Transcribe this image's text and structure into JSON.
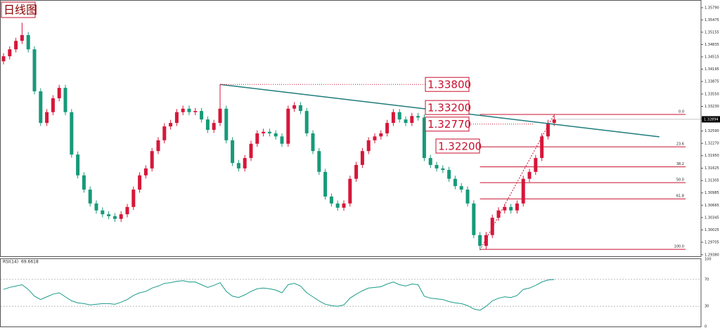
{
  "chart_data": [
    {
      "type": "candlestick",
      "title": "日线图",
      "up_color": "#d6173a",
      "down_color": "#179a7a",
      "open": [
        1.344,
        1.3453,
        1.3471,
        1.3493,
        1.3508,
        1.3471,
        1.3362,
        1.328,
        1.3308,
        1.3344,
        1.3371,
        1.3308,
        1.3198,
        1.3144,
        1.3107,
        1.3071,
        1.3053,
        1.3043,
        1.3038,
        1.3031,
        1.3043,
        1.3062,
        1.3107,
        1.3144,
        1.3162,
        1.3207,
        1.3235,
        1.3271,
        1.328,
        1.3308,
        1.3317,
        1.3308,
        1.3311,
        1.3289,
        1.3262,
        1.328,
        1.3317,
        1.3235,
        1.3176,
        1.3162,
        1.3189,
        1.3226,
        1.3253,
        1.3257,
        1.3253,
        1.3245,
        1.3226,
        1.3317,
        1.3326,
        1.3311,
        1.3253,
        1.3207,
        1.3153,
        1.3089,
        1.3071,
        1.306,
        1.3071,
        1.3135,
        1.3171,
        1.3207,
        1.3235,
        1.3245,
        1.3253,
        1.328,
        1.3308,
        1.3289,
        1.328,
        1.3298,
        1.3294,
        1.3189,
        1.3171,
        1.3162,
        1.3158,
        1.3135,
        1.3116,
        1.3107,
        1.3071,
        1.2989,
        1.2961,
        1.2989,
        1.3034,
        1.3053,
        1.3062,
        1.3053,
        1.3071,
        1.3135,
        1.3153,
        1.3189,
        1.3245,
        1.328
      ],
      "high": [
        1.3461,
        1.3479,
        1.3501,
        1.354,
        1.3516,
        1.3479,
        1.337,
        1.3316,
        1.3352,
        1.3379,
        1.3379,
        1.3316,
        1.3206,
        1.3152,
        1.3115,
        1.3079,
        1.3061,
        1.3051,
        1.3046,
        1.3051,
        1.307,
        1.3115,
        1.3152,
        1.317,
        1.3215,
        1.3243,
        1.3279,
        1.3288,
        1.3316,
        1.3325,
        1.3325,
        1.3319,
        1.3319,
        1.3297,
        1.3288,
        1.338,
        1.3325,
        1.3243,
        1.3184,
        1.3197,
        1.3234,
        1.3261,
        1.3265,
        1.3265,
        1.3261,
        1.3253,
        1.3325,
        1.3334,
        1.3334,
        1.3319,
        1.3261,
        1.3215,
        1.3161,
        1.3097,
        1.3079,
        1.3079,
        1.3143,
        1.3179,
        1.3215,
        1.3243,
        1.3253,
        1.3261,
        1.3288,
        1.3316,
        1.3316,
        1.3297,
        1.3306,
        1.3306,
        1.3302,
        1.3197,
        1.3179,
        1.317,
        1.3166,
        1.3143,
        1.3124,
        1.3115,
        1.3079,
        1.2997,
        1.2997,
        1.3042,
        1.3061,
        1.307,
        1.307,
        1.3079,
        1.3143,
        1.3161,
        1.3197,
        1.3253,
        1.3288,
        1.3302
      ],
      "low": [
        1.3432,
        1.3445,
        1.3463,
        1.3485,
        1.3463,
        1.3354,
        1.3272,
        1.3272,
        1.33,
        1.3336,
        1.33,
        1.319,
        1.3136,
        1.3099,
        1.3063,
        1.3045,
        1.3035,
        1.303,
        1.3023,
        1.3023,
        1.3035,
        1.3054,
        1.3099,
        1.3136,
        1.3154,
        1.3199,
        1.3227,
        1.3263,
        1.3272,
        1.33,
        1.33,
        1.33,
        1.3281,
        1.3254,
        1.3254,
        1.3272,
        1.3227,
        1.3168,
        1.3154,
        1.3154,
        1.3181,
        1.3218,
        1.3245,
        1.3245,
        1.3237,
        1.3218,
        1.3218,
        1.3309,
        1.3303,
        1.3245,
        1.3199,
        1.3145,
        1.3081,
        1.3063,
        1.3052,
        1.3052,
        1.3063,
        1.3127,
        1.3163,
        1.3199,
        1.3227,
        1.3237,
        1.3245,
        1.3272,
        1.3281,
        1.3272,
        1.3272,
        1.3286,
        1.3181,
        1.3163,
        1.3154,
        1.315,
        1.3127,
        1.3108,
        1.3099,
        1.3063,
        1.2981,
        1.295,
        1.2953,
        1.2981,
        1.3026,
        1.3045,
        1.3045,
        1.3045,
        1.3063,
        1.3127,
        1.3145,
        1.3181,
        1.3237,
        1.3272
      ],
      "close": [
        1.3453,
        1.3471,
        1.3493,
        1.3508,
        1.3471,
        1.3362,
        1.328,
        1.3308,
        1.3344,
        1.3371,
        1.3308,
        1.3198,
        1.3144,
        1.3107,
        1.3071,
        1.3053,
        1.3043,
        1.3038,
        1.3031,
        1.3043,
        1.3062,
        1.3107,
        1.3144,
        1.3162,
        1.3207,
        1.3235,
        1.3271,
        1.328,
        1.3308,
        1.3317,
        1.3308,
        1.3311,
        1.3289,
        1.3262,
        1.328,
        1.3317,
        1.3235,
        1.3176,
        1.3162,
        1.3189,
        1.3226,
        1.3253,
        1.3257,
        1.3253,
        1.3245,
        1.3226,
        1.3317,
        1.3326,
        1.3311,
        1.3253,
        1.3207,
        1.3153,
        1.3089,
        1.3071,
        1.306,
        1.3071,
        1.3135,
        1.3171,
        1.3207,
        1.3235,
        1.3245,
        1.3253,
        1.328,
        1.3308,
        1.3289,
        1.328,
        1.3298,
        1.3294,
        1.3189,
        1.3171,
        1.3162,
        1.3158,
        1.3135,
        1.3116,
        1.3107,
        1.3071,
        1.2989,
        1.2961,
        1.2989,
        1.3034,
        1.3053,
        1.3062,
        1.3053,
        1.3071,
        1.3135,
        1.3153,
        1.3189,
        1.3245,
        1.328,
        1.3289
      ],
      "ylim": [
        1.2934,
        1.3599
      ],
      "yticks": [
        {
          "value": 1.3579,
          "label": "1.35790"
        },
        {
          "value": 1.35475,
          "label": "1.35475"
        },
        {
          "value": 1.35155,
          "label": "1.35155"
        },
        {
          "value": 1.34835,
          "label": "1.34835"
        },
        {
          "value": 1.34515,
          "label": "1.34515"
        },
        {
          "value": 1.34195,
          "label": "1.34195"
        },
        {
          "value": 1.33875,
          "label": "1.33875"
        },
        {
          "value": 1.3355,
          "label": "1.33550"
        },
        {
          "value": 1.3323,
          "label": "1.33230"
        },
        {
          "value": 1.3291,
          "label": "1.32910"
        },
        {
          "value": 1.3259,
          "label": "1.32590"
        },
        {
          "value": 1.3227,
          "label": "1.32270"
        },
        {
          "value": 1.3195,
          "label": "1.31950"
        },
        {
          "value": 1.31625,
          "label": "1.31625"
        },
        {
          "value": 1.31305,
          "label": "1.31305"
        },
        {
          "value": 1.30985,
          "label": "1.30985"
        },
        {
          "value": 1.30665,
          "label": "1.30665"
        },
        {
          "value": 1.30345,
          "label": "1.30345"
        },
        {
          "value": 1.30025,
          "label": "1.30025"
        },
        {
          "value": 1.29705,
          "label": "1.29705"
        },
        {
          "value": 1.2938,
          "label": "1.29380"
        }
      ],
      "current_price": {
        "value": 1.32894,
        "label": "1.32894"
      },
      "trendline": {
        "color": "#1e7b7b",
        "start": [
          35,
          1.338
        ],
        "end": [
          106,
          1.3244
        ]
      },
      "annotations": [
        {
          "value": 1.338,
          "label": "1.33800"
        },
        {
          "value": 1.332,
          "label": "1.33200"
        },
        {
          "value": 1.3277,
          "label": "1.32770"
        },
        {
          "value": 1.322,
          "label": "1.32200"
        }
      ],
      "fib_color": "#c8102e",
      "fib_levels": [
        {
          "label": "0.0",
          "price": 1.3302
        },
        {
          "label": "23.6",
          "price": 1.3218
        },
        {
          "label": "38.2",
          "price": 1.3166
        },
        {
          "label": "50.0",
          "price": 1.3125
        },
        {
          "label": "61.8",
          "price": 1.3083
        },
        {
          "label": "100.0",
          "price": 1.2952
        }
      ]
    },
    {
      "type": "line",
      "name": "RSI(14)",
      "color": "#1a9a8a",
      "values": [
        55,
        58,
        60,
        62,
        55,
        45,
        40,
        44,
        48,
        50,
        44,
        38,
        35,
        34,
        32,
        33,
        34,
        34,
        33,
        36,
        40,
        46,
        50,
        52,
        57,
        60,
        64,
        65,
        67,
        68,
        66,
        66,
        62,
        58,
        61,
        65,
        52,
        45,
        43,
        47,
        52,
        56,
        57,
        56,
        54,
        50,
        62,
        64,
        60,
        50,
        44,
        38,
        33,
        31,
        30,
        32,
        42,
        48,
        53,
        57,
        58,
        59,
        63,
        66,
        62,
        60,
        63,
        62,
        45,
        42,
        41,
        40,
        37,
        35,
        34,
        31,
        26,
        24,
        30,
        38,
        42,
        44,
        43,
        46,
        55,
        57,
        61,
        66,
        69,
        69.6618
      ],
      "ylim": [
        0,
        100
      ],
      "yticks": [
        100,
        70,
        30,
        0
      ]
    }
  ]
}
